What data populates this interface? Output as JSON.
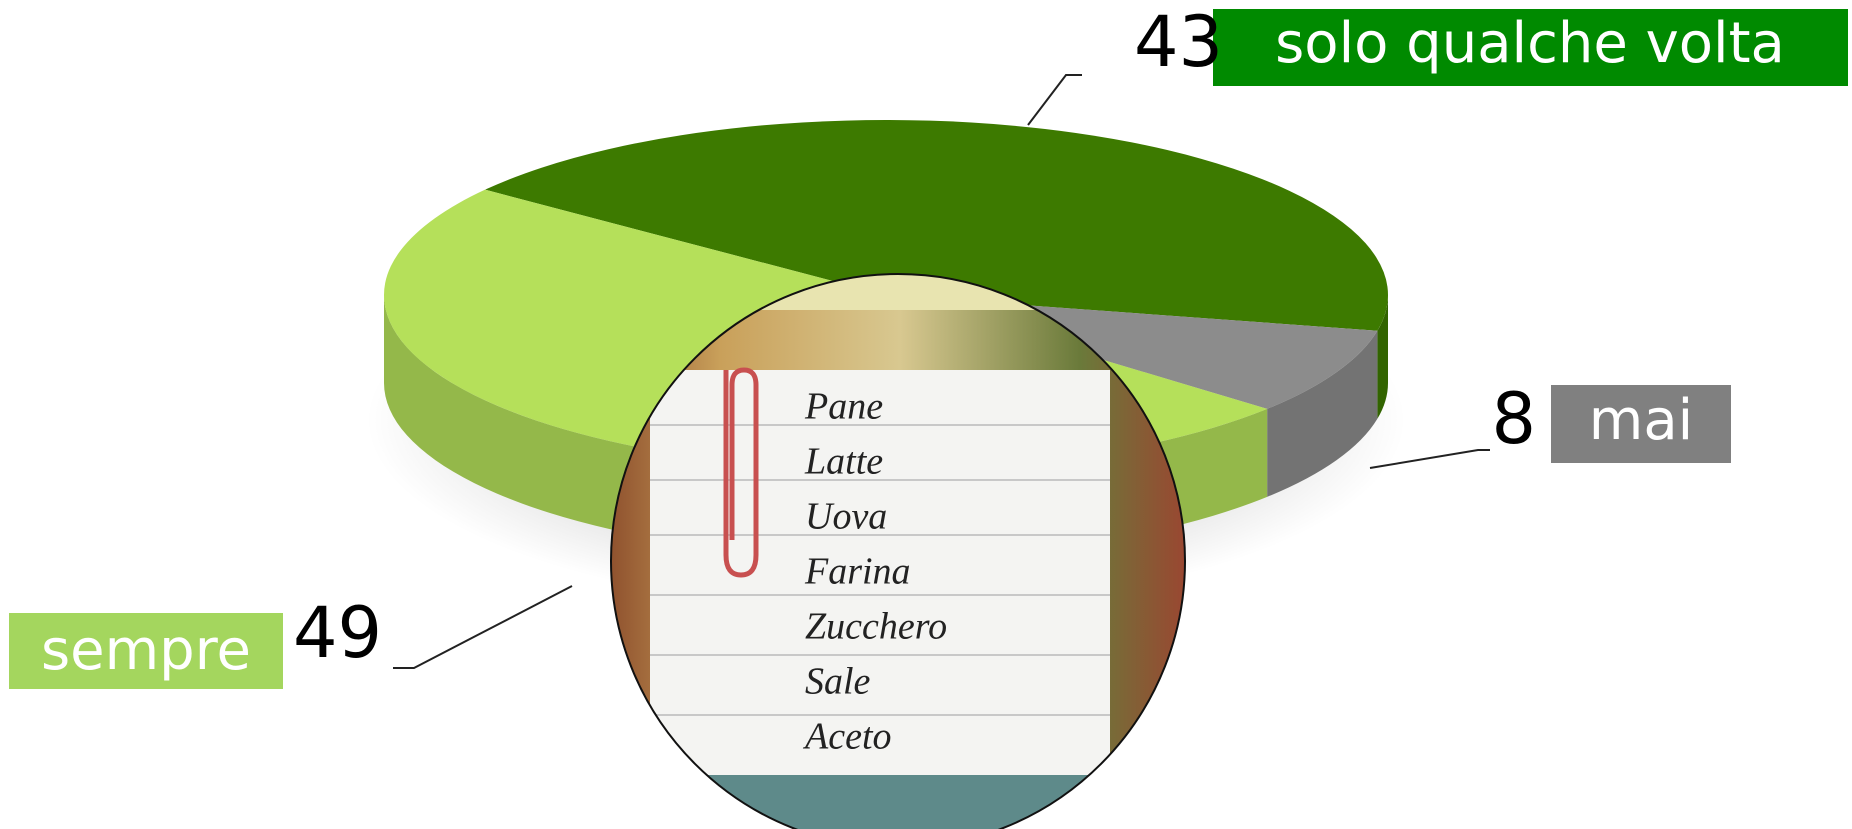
{
  "chart_data": {
    "type": "pie",
    "categories": [
      "solo qualche volta",
      "mai",
      "sempre"
    ],
    "values": [
      43,
      8,
      49
    ],
    "colors": [
      "#3d7a00",
      "#8c8c8c",
      "#b5e05a"
    ],
    "annotations": [
      "Pane",
      "Latte",
      "Uova",
      "Farina",
      "Zucchero",
      "Sale",
      "Aceto"
    ]
  }
}
